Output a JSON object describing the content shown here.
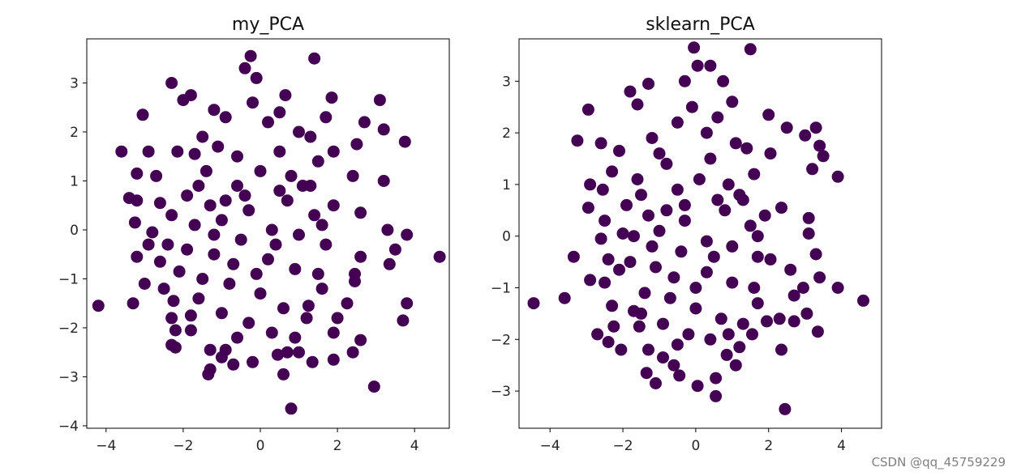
{
  "chart_data": [
    {
      "type": "scatter",
      "title": "my_PCA",
      "xlim": [
        -4.5,
        4.9
      ],
      "ylim": [
        -4.05,
        3.9
      ],
      "xticks": [
        -4,
        -2,
        0,
        2,
        4
      ],
      "yticks": [
        -4,
        -3,
        -2,
        -1,
        0,
        1,
        2,
        3
      ],
      "xticklabels": [
        "−4",
        "−2",
        "0",
        "2",
        "4"
      ],
      "yticklabels": [
        "−4",
        "−3",
        "−2",
        "−1",
        "0",
        "1",
        "2",
        "3"
      ],
      "marker_color": "#440154",
      "points": [
        [
          -0.25,
          3.55
        ],
        [
          1.4,
          3.5
        ],
        [
          -0.4,
          3.3
        ],
        [
          -2.3,
          3.0
        ],
        [
          -0.1,
          3.1
        ],
        [
          0.65,
          2.75
        ],
        [
          -1.8,
          2.75
        ],
        [
          1.85,
          2.7
        ],
        [
          -2.0,
          2.65
        ],
        [
          3.1,
          2.65
        ],
        [
          -1.2,
          2.45
        ],
        [
          1.7,
          2.3
        ],
        [
          -3.05,
          2.35
        ],
        [
          2.7,
          2.2
        ],
        [
          3.2,
          2.05
        ],
        [
          3.75,
          1.8
        ],
        [
          -3.6,
          1.6
        ],
        [
          -2.9,
          1.6
        ],
        [
          -2.15,
          1.6
        ],
        [
          2.5,
          1.75
        ],
        [
          -1.7,
          1.55
        ],
        [
          1.9,
          1.6
        ],
        [
          -3.2,
          1.15
        ],
        [
          -2.7,
          1.1
        ],
        [
          2.4,
          1.1
        ],
        [
          3.2,
          1.0
        ],
        [
          -3.4,
          0.65
        ],
        [
          -3.2,
          0.6
        ],
        [
          -2.6,
          0.55
        ],
        [
          -2.3,
          0.3
        ],
        [
          2.6,
          0.35
        ],
        [
          3.3,
          0.0
        ],
        [
          -3.25,
          0.15
        ],
        [
          -2.8,
          -0.05
        ],
        [
          -2.9,
          -0.3
        ],
        [
          3.8,
          -0.1
        ],
        [
          -2.4,
          -0.3
        ],
        [
          4.65,
          -0.55
        ],
        [
          -3.2,
          -0.55
        ],
        [
          3.5,
          -0.4
        ],
        [
          2.6,
          -0.55
        ],
        [
          -2.6,
          -0.65
        ],
        [
          3.35,
          -0.7
        ],
        [
          -2.1,
          -0.85
        ],
        [
          2.45,
          -0.9
        ],
        [
          -3.0,
          -1.1
        ],
        [
          2.45,
          -1.05
        ],
        [
          -2.5,
          -1.2
        ],
        [
          -4.2,
          -1.55
        ],
        [
          -3.3,
          -1.5
        ],
        [
          -2.25,
          -1.45
        ],
        [
          3.8,
          -1.5
        ],
        [
          2.25,
          -1.5
        ],
        [
          1.25,
          -1.55
        ],
        [
          -2.3,
          -1.8
        ],
        [
          3.7,
          -1.85
        ],
        [
          -1.8,
          -1.75
        ],
        [
          2.0,
          -1.8
        ],
        [
          -2.2,
          -2.05
        ],
        [
          -1.8,
          -2.05
        ],
        [
          1.9,
          -2.1
        ],
        [
          2.6,
          -2.25
        ],
        [
          -2.3,
          -2.35
        ],
        [
          -2.2,
          -2.4
        ],
        [
          -1.3,
          -2.45
        ],
        [
          2.4,
          -2.5
        ],
        [
          -0.9,
          -2.45
        ],
        [
          -1.0,
          -2.6
        ],
        [
          0.45,
          -2.55
        ],
        [
          1.0,
          -2.5
        ],
        [
          -0.7,
          -2.75
        ],
        [
          1.9,
          -2.65
        ],
        [
          0.7,
          -2.5
        ],
        [
          1.35,
          -2.7
        ],
        [
          -0.2,
          -2.7
        ],
        [
          -1.3,
          -2.85
        ],
        [
          -1.35,
          -2.95
        ],
        [
          0.6,
          -2.95
        ],
        [
          2.95,
          -3.2
        ],
        [
          0.8,
          -3.65
        ],
        [
          -1.5,
          1.9
        ],
        [
          -0.9,
          2.3
        ],
        [
          0.2,
          2.2
        ],
        [
          1.0,
          2.0
        ],
        [
          1.5,
          1.4
        ],
        [
          -1.4,
          1.2
        ],
        [
          -0.6,
          1.5
        ],
        [
          0.5,
          1.6
        ],
        [
          1.1,
          0.9
        ],
        [
          -1.9,
          0.7
        ],
        [
          -1.3,
          0.5
        ],
        [
          -0.6,
          0.9
        ],
        [
          0.0,
          1.2
        ],
        [
          0.7,
          0.6
        ],
        [
          1.4,
          0.3
        ],
        [
          1.9,
          0.5
        ],
        [
          -1.7,
          0.1
        ],
        [
          -1.0,
          0.2
        ],
        [
          -0.3,
          0.4
        ],
        [
          0.3,
          0.0
        ],
        [
          1.0,
          -0.1
        ],
        [
          1.7,
          -0.3
        ],
        [
          -1.9,
          -0.4
        ],
        [
          -1.2,
          -0.5
        ],
        [
          -0.5,
          -0.2
        ],
        [
          0.2,
          -0.6
        ],
        [
          0.9,
          -0.8
        ],
        [
          1.5,
          -0.9
        ],
        [
          -1.5,
          -1.0
        ],
        [
          -0.8,
          -1.1
        ],
        [
          0.0,
          -1.3
        ],
        [
          0.6,
          -1.6
        ],
        [
          1.2,
          -1.8
        ],
        [
          -1.0,
          -1.7
        ],
        [
          -0.3,
          -1.9
        ],
        [
          0.3,
          -2.1
        ],
        [
          -0.6,
          -2.2
        ],
        [
          0.9,
          -2.2
        ],
        [
          -1.6,
          -1.4
        ],
        [
          1.6,
          -1.2
        ],
        [
          -0.2,
          2.6
        ],
        [
          0.5,
          2.4
        ],
        [
          -1.1,
          1.7
        ],
        [
          1.3,
          1.9
        ],
        [
          -0.4,
          0.7
        ],
        [
          0.8,
          1.1
        ],
        [
          -1.2,
          -0.1
        ],
        [
          0.4,
          -0.3
        ],
        [
          -0.7,
          -0.7
        ],
        [
          1.3,
          0.9
        ],
        [
          -0.1,
          -0.9
        ],
        [
          0.5,
          0.8
        ],
        [
          -1.6,
          0.9
        ],
        [
          1.6,
          0.1
        ],
        [
          -0.9,
          0.6
        ]
      ]
    },
    {
      "type": "scatter",
      "title": "sklearn_PCA",
      "xlim": [
        -4.85,
        5.1
      ],
      "ylim": [
        -3.72,
        3.82
      ],
      "xticks": [
        -4,
        -2,
        0,
        2,
        4
      ],
      "yticks": [
        -3,
        -2,
        -1,
        0,
        1,
        2,
        3
      ],
      "xticklabels": [
        "−4",
        "−2",
        "0",
        "2",
        "4"
      ],
      "yticklabels": [
        "−3",
        "−2",
        "−1",
        "0",
        "1",
        "2",
        "3"
      ],
      "marker_color": "#440154",
      "points": [
        [
          -0.05,
          3.65
        ],
        [
          1.5,
          3.62
        ],
        [
          0.05,
          3.3
        ],
        [
          0.4,
          3.3
        ],
        [
          -1.3,
          2.95
        ],
        [
          0.75,
          3.0
        ],
        [
          -0.3,
          3.0
        ],
        [
          -1.8,
          2.8
        ],
        [
          1.0,
          2.6
        ],
        [
          -2.95,
          2.45
        ],
        [
          2.0,
          2.35
        ],
        [
          -1.6,
          2.55
        ],
        [
          3.3,
          2.1
        ],
        [
          2.5,
          2.1
        ],
        [
          -3.25,
          1.85
        ],
        [
          -2.6,
          1.8
        ],
        [
          3.0,
          1.95
        ],
        [
          3.4,
          1.75
        ],
        [
          -2.1,
          1.65
        ],
        [
          2.05,
          1.6
        ],
        [
          3.5,
          1.55
        ],
        [
          -2.3,
          1.25
        ],
        [
          3.2,
          1.3
        ],
        [
          3.9,
          1.15
        ],
        [
          -2.9,
          1.0
        ],
        [
          -2.55,
          0.9
        ],
        [
          -2.95,
          0.55
        ],
        [
          2.35,
          0.55
        ],
        [
          -2.5,
          0.3
        ],
        [
          3.1,
          0.35
        ],
        [
          -2.0,
          0.05
        ],
        [
          3.1,
          0.05
        ],
        [
          -2.6,
          -0.05
        ],
        [
          -3.35,
          -0.4
        ],
        [
          2.05,
          -0.45
        ],
        [
          -2.4,
          -0.45
        ],
        [
          3.3,
          -0.35
        ],
        [
          -2.1,
          -0.65
        ],
        [
          2.6,
          -0.65
        ],
        [
          -2.9,
          -0.85
        ],
        [
          3.4,
          -0.8
        ],
        [
          2.95,
          -1.0
        ],
        [
          -2.5,
          -0.9
        ],
        [
          3.9,
          -1.0
        ],
        [
          4.6,
          -1.25
        ],
        [
          -3.6,
          -1.2
        ],
        [
          -4.45,
          -1.3
        ],
        [
          2.7,
          -1.15
        ],
        [
          -2.3,
          -1.35
        ],
        [
          3.05,
          -1.5
        ],
        [
          -1.7,
          -1.45
        ],
        [
          2.3,
          -1.6
        ],
        [
          -2.25,
          -1.75
        ],
        [
          1.95,
          -1.65
        ],
        [
          -1.55,
          -1.75
        ],
        [
          2.7,
          -1.65
        ],
        [
          -2.7,
          -1.9
        ],
        [
          3.35,
          -1.85
        ],
        [
          -2.4,
          -2.05
        ],
        [
          1.55,
          -1.9
        ],
        [
          -2.05,
          -2.2
        ],
        [
          1.2,
          -2.15
        ],
        [
          -1.3,
          -2.2
        ],
        [
          2.35,
          -2.2
        ],
        [
          -0.9,
          -2.35
        ],
        [
          0.85,
          -2.3
        ],
        [
          -0.6,
          -2.5
        ],
        [
          1.1,
          -2.5
        ],
        [
          -1.35,
          -2.65
        ],
        [
          -0.45,
          -2.7
        ],
        [
          0.55,
          -2.75
        ],
        [
          -1.1,
          -2.85
        ],
        [
          0.05,
          -2.9
        ],
        [
          0.55,
          -3.1
        ],
        [
          2.45,
          -3.35
        ],
        [
          -1.2,
          1.9
        ],
        [
          -0.5,
          2.2
        ],
        [
          0.3,
          2.0
        ],
        [
          1.1,
          1.8
        ],
        [
          1.6,
          1.2
        ],
        [
          -1.6,
          1.1
        ],
        [
          -0.8,
          1.4
        ],
        [
          0.4,
          1.5
        ],
        [
          1.2,
          0.8
        ],
        [
          -1.9,
          0.6
        ],
        [
          -1.3,
          0.4
        ],
        [
          -0.5,
          0.9
        ],
        [
          0.1,
          1.1
        ],
        [
          0.8,
          0.5
        ],
        [
          1.5,
          0.2
        ],
        [
          1.9,
          0.4
        ],
        [
          -1.7,
          0.0
        ],
        [
          -1.0,
          0.1
        ],
        [
          -0.3,
          0.3
        ],
        [
          0.3,
          -0.1
        ],
        [
          1.0,
          -0.2
        ],
        [
          1.7,
          -0.4
        ],
        [
          -1.8,
          -0.5
        ],
        [
          -1.1,
          -0.6
        ],
        [
          -0.4,
          -0.3
        ],
        [
          0.3,
          -0.7
        ],
        [
          1.0,
          -0.9
        ],
        [
          1.6,
          -1.0
        ],
        [
          -1.4,
          -1.1
        ],
        [
          -0.7,
          -1.2
        ],
        [
          0.0,
          -1.4
        ],
        [
          0.7,
          -1.6
        ],
        [
          1.3,
          -1.7
        ],
        [
          -0.9,
          -1.7
        ],
        [
          -0.2,
          -1.9
        ],
        [
          0.4,
          -2.0
        ],
        [
          -0.5,
          -2.1
        ],
        [
          0.9,
          -1.9
        ],
        [
          -1.5,
          -1.5
        ],
        [
          1.7,
          -1.3
        ],
        [
          -0.1,
          2.5
        ],
        [
          0.6,
          2.3
        ],
        [
          -1.0,
          1.6
        ],
        [
          1.4,
          1.7
        ],
        [
          -0.3,
          0.6
        ],
        [
          0.9,
          1.0
        ],
        [
          -1.2,
          -0.2
        ],
        [
          0.5,
          -0.4
        ],
        [
          -0.6,
          -0.8
        ],
        [
          1.3,
          0.7
        ],
        [
          0.0,
          -1.0
        ],
        [
          0.6,
          0.7
        ],
        [
          -1.5,
          0.8
        ],
        [
          1.7,
          0.0
        ],
        [
          -0.8,
          0.5
        ]
      ]
    }
  ],
  "watermark": "CSDN @qq_45759229"
}
